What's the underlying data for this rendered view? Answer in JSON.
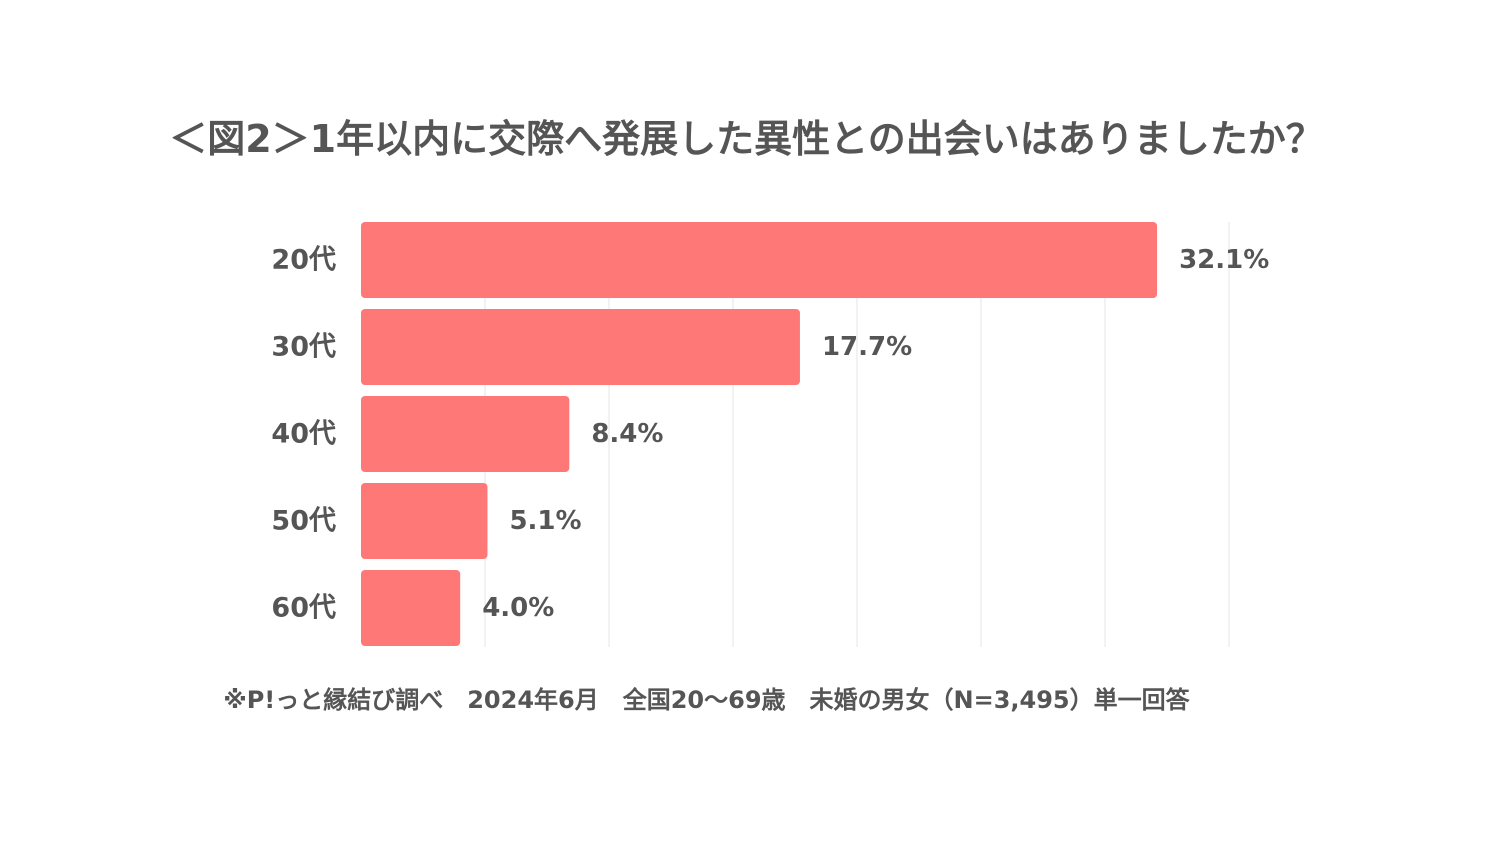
{
  "chart_data": {
    "type": "bar",
    "orientation": "horizontal",
    "title": "＜図2＞1年以内に交際へ発展した異性との出会いはありましたか？",
    "categories": [
      "20代",
      "30代",
      "40代",
      "50代",
      "60代"
    ],
    "values": [
      32.1,
      17.7,
      8.4,
      5.1,
      4.0
    ],
    "value_labels": [
      "32.1%",
      "17.7%",
      "8.4%",
      "5.1%",
      "4.0%"
    ],
    "unit": "%",
    "xlim": [
      0,
      35
    ],
    "grid": true,
    "bar_color": "#ff7878",
    "grid_color": "#e5e5e5",
    "text_color": "#555555"
  },
  "footnote": "※P!っと縁結び調べ　2024年6月　全国20〜69歳　未婚の男女（N=3,495）単一回答"
}
